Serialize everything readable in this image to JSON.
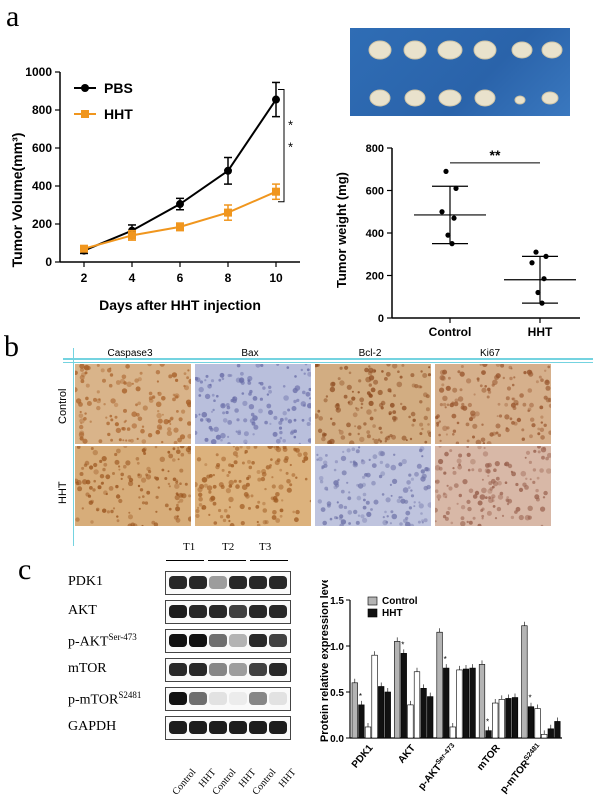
{
  "panels": {
    "a": "a",
    "b": "b",
    "c": "c"
  },
  "chart_data": [
    {
      "type": "line",
      "xlabel": "Days after HHT injection",
      "ylabel": "Tumor Volume(mm³)",
      "x": [
        2,
        4,
        6,
        8,
        10
      ],
      "xlim": [
        1,
        11
      ],
      "ylim": [
        0,
        1000
      ],
      "yticks": [
        0,
        200,
        400,
        600,
        800,
        1000
      ],
      "series": [
        {
          "name": "PBS",
          "color": "#000000",
          "values": [
            60,
            165,
            305,
            480,
            855
          ],
          "errors": [
            15,
            30,
            30,
            70,
            90
          ]
        },
        {
          "name": "HHT",
          "color": "#f0961e",
          "values": [
            70,
            140,
            185,
            260,
            370
          ],
          "errors": [
            15,
            25,
            20,
            40,
            40
          ]
        }
      ],
      "significance": [
        "*",
        "*"
      ],
      "legend": "top-left"
    },
    {
      "type": "scatter",
      "ylabel": "Tumor weight (mg)",
      "categories": [
        "Control",
        "HHT"
      ],
      "ylim": [
        0,
        800
      ],
      "yticks": [
        0,
        200,
        400,
        600,
        800
      ],
      "points": [
        [
          690,
          610,
          500,
          470,
          390,
          350
        ],
        [
          310,
          290,
          260,
          185,
          120,
          70
        ]
      ],
      "mean": [
        485,
        180
      ],
      "sd": [
        135,
        110
      ],
      "significance": "**"
    },
    {
      "type": "bar",
      "ylabel": "Protein relative expression level",
      "categories": [
        "PDK1",
        "AKT",
        "p-AKT",
        "mTOR",
        "p-mTOR"
      ],
      "category_superscripts": [
        "",
        "",
        "Ser-473",
        "",
        "S2481"
      ],
      "ylim": [
        0,
        1.5
      ],
      "yticks": [
        "0.0",
        "0.5",
        "1.0",
        "1.5"
      ],
      "legend": [
        {
          "name": "Control",
          "color": "#b4b4b4"
        },
        {
          "name": "HHT",
          "color": "#111111"
        }
      ],
      "groups": [
        [
          0.6,
          0.36,
          0.12,
          0.9,
          0.56,
          0.5
        ],
        [
          1.05,
          0.92,
          0.36,
          0.72,
          0.54,
          0.45
        ],
        [
          1.15,
          0.76,
          0.12,
          0.74,
          0.75,
          0.76
        ],
        [
          0.8,
          0.08,
          0.38,
          0.42,
          0.43,
          0.44
        ],
        [
          1.22,
          0.34,
          0.32,
          0.04,
          0.1,
          0.18
        ]
      ],
      "bar_colors": [
        "#b4b4b4",
        "#111111",
        "#ffffff",
        "#ffffff",
        "#111111",
        "#111111"
      ],
      "stars": [
        "*",
        "*",
        "*",
        "*",
        "*"
      ]
    }
  ],
  "ihc": {
    "columns": [
      "Caspase3",
      "Bax",
      "Bcl-2",
      "Ki67"
    ],
    "rows": [
      "Control",
      "HHT"
    ],
    "tiles": [
      [
        {
          "bg": "#d9b48a",
          "dot": "#a8612a"
        },
        {
          "bg": "#b9bfdc",
          "dot": "#6b6fa8"
        },
        {
          "bg": "#d2ad82",
          "dot": "#8f4e23"
        },
        {
          "bg": "#d6b08c",
          "dot": "#98562e"
        }
      ],
      [
        {
          "bg": "#d7ad7a",
          "dot": "#9b5620"
        },
        {
          "bg": "#dcb27d",
          "dot": "#9f5a22"
        },
        {
          "bg": "#bfc4de",
          "dot": "#7074a8"
        },
        {
          "bg": "#d8b8a7",
          "dot": "#98604d"
        }
      ]
    ]
  },
  "western": {
    "groups": [
      "T1",
      "T2",
      "T3"
    ],
    "proteins": [
      {
        "name": "PDK1",
        "sup": "",
        "bands": [
          0.9,
          0.9,
          0.4,
          0.9,
          0.9,
          0.9
        ]
      },
      {
        "name": "AKT",
        "sup": "",
        "bands": [
          0.95,
          0.9,
          0.9,
          0.8,
          0.9,
          0.9
        ]
      },
      {
        "name": "p-AKT",
        "sup": "Ser-473",
        "bands": [
          1.0,
          1.0,
          0.6,
          0.3,
          0.9,
          0.8
        ]
      },
      {
        "name": "mTOR",
        "sup": "",
        "bands": [
          0.9,
          0.9,
          0.5,
          0.4,
          0.8,
          0.9
        ]
      },
      {
        "name": "p-mTOR",
        "sup": "S2481",
        "bands": [
          1.0,
          0.6,
          0.1,
          0.05,
          0.5,
          0.1
        ]
      },
      {
        "name": "GAPDH",
        "sup": "",
        "bands": [
          0.95,
          0.95,
          0.95,
          0.95,
          0.95,
          0.95
        ]
      }
    ],
    "lanes": [
      "Control",
      "HHT",
      "Control",
      "HHT",
      "Control",
      "HHT"
    ]
  }
}
